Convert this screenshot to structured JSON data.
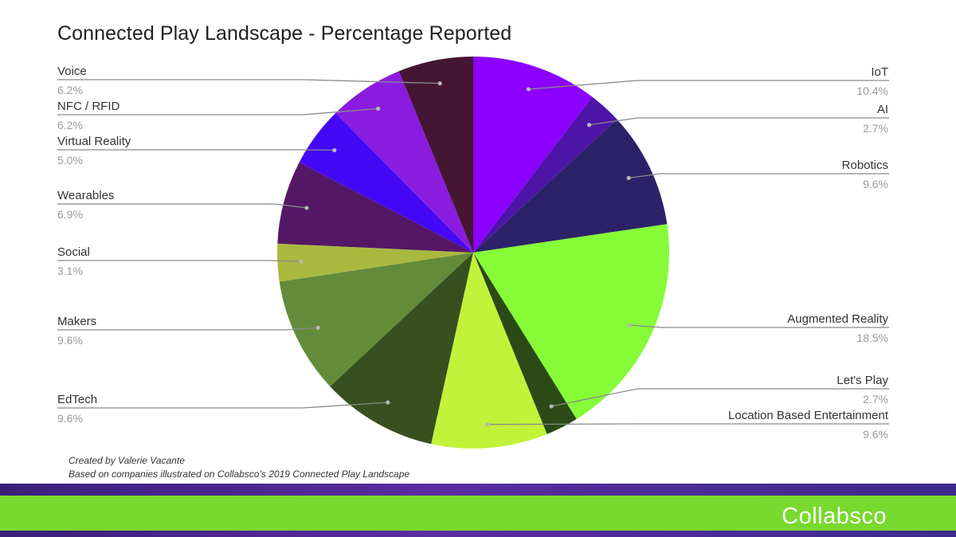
{
  "chart_data": {
    "type": "pie",
    "title": "Connected Play Landscape - Percentage Reported",
    "slices": [
      {
        "label": "IoT",
        "value": 10.4,
        "display": "10.4%",
        "color": "#8b00ff",
        "side": "right"
      },
      {
        "label": "AI",
        "value": 2.7,
        "display": "2.7%",
        "color": "#4d14a8",
        "side": "right"
      },
      {
        "label": "Robotics",
        "value": 9.6,
        "display": "9.6%",
        "color": "#2c2268",
        "side": "right"
      },
      {
        "label": "Augmented Reality",
        "value": 18.5,
        "display": "18.5%",
        "color": "#86fb38",
        "side": "right"
      },
      {
        "label": "Let's Play",
        "value": 2.7,
        "display": "2.7%",
        "color": "#2c4a16",
        "side": "right"
      },
      {
        "label": "Location Based Entertainment",
        "value": 9.6,
        "display": "9.6%",
        "color": "#c3f23a",
        "side": "right"
      },
      {
        "label": "EdTech",
        "value": 9.6,
        "display": "9.6%",
        "color": "#38501f",
        "side": "left"
      },
      {
        "label": "Makers",
        "value": 9.6,
        "display": "9.6%",
        "color": "#628c3a",
        "side": "left"
      },
      {
        "label": "Social",
        "value": 3.1,
        "display": "3.1%",
        "color": "#a9b93e",
        "side": "left"
      },
      {
        "label": "Wearables",
        "value": 6.9,
        "display": "6.9%",
        "color": "#541766",
        "side": "left"
      },
      {
        "label": "Virtual Reality",
        "value": 5.0,
        "display": "5.0%",
        "color": "#4308f5",
        "side": "left"
      },
      {
        "label": "NFC / RFID",
        "value": 6.2,
        "display": "6.2%",
        "color": "#8a1ce0",
        "side": "left"
      },
      {
        "label": "Voice",
        "value": 6.2,
        "display": "6.2%",
        "color": "#451634",
        "side": "left"
      }
    ]
  },
  "credits": {
    "line1": "Created by Valerie Vacante",
    "line2": "Based on companies illustrated on Collabsco’s 2019 Connected Play Landscape"
  },
  "footer": {
    "brand": "Collabsco",
    "colors": {
      "band": "#4a2690",
      "green": "#79d92f"
    }
  }
}
